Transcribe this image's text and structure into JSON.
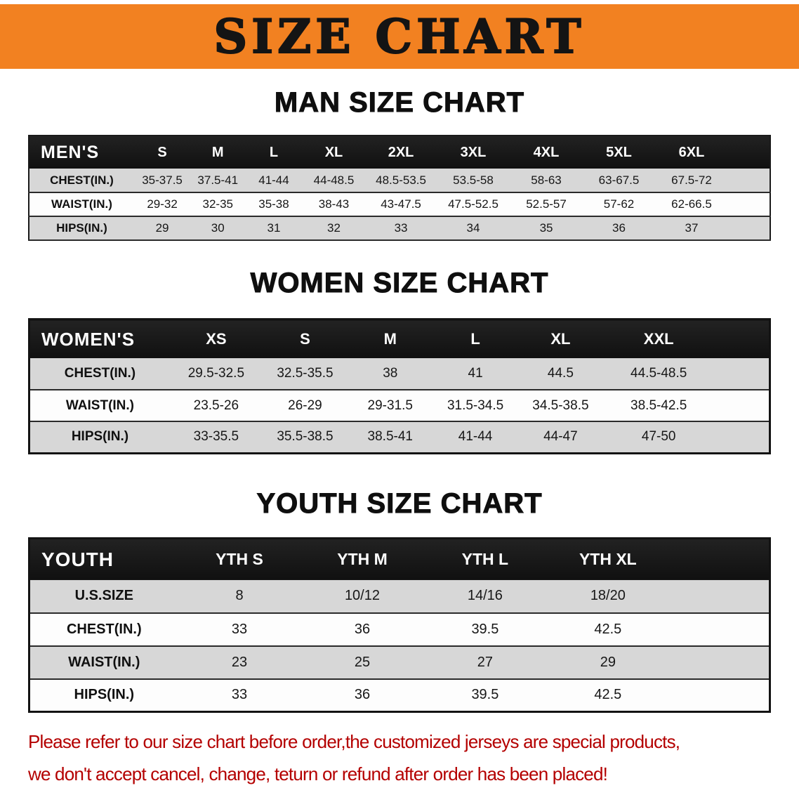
{
  "banner": {
    "title": "SIZE CHART"
  },
  "colors": {
    "banner_bg": "#F28121",
    "table_header_bg": "#171717",
    "table_header_text": "#FFFFFF",
    "shaded_row_bg": "#D7D7D7",
    "note_text": "#B40000"
  },
  "men": {
    "heading": "MAN SIZE CHART",
    "corner": "MEN'S",
    "columns": [
      "S",
      "M",
      "L",
      "XL",
      "2XL",
      "3XL",
      "4XL",
      "5XL",
      "6XL"
    ],
    "rows": [
      {
        "label": "CHEST(IN.)",
        "values": [
          "35-37.5",
          "37.5-41",
          "41-44",
          "44-48.5",
          "48.5-53.5",
          "53.5-58",
          "58-63",
          "63-67.5",
          "67.5-72"
        ]
      },
      {
        "label": "WAIST(IN.)",
        "values": [
          "29-32",
          "32-35",
          "35-38",
          "38-43",
          "43-47.5",
          "47.5-52.5",
          "52.5-57",
          "57-62",
          "62-66.5"
        ]
      },
      {
        "label": "HIPS(IN.)",
        "values": [
          "29",
          "30",
          "31",
          "32",
          "33",
          "34",
          "35",
          "36",
          "37"
        ]
      }
    ]
  },
  "women": {
    "heading": "WOMEN SIZE CHART",
    "corner": "WOMEN'S",
    "columns": [
      "XS",
      "S",
      "M",
      "L",
      "XL",
      "XXL"
    ],
    "rows": [
      {
        "label": "CHEST(IN.)",
        "values": [
          "29.5-32.5",
          "32.5-35.5",
          "38",
          "41",
          "44.5",
          "44.5-48.5"
        ]
      },
      {
        "label": "WAIST(IN.)",
        "values": [
          "23.5-26",
          "26-29",
          "29-31.5",
          "31.5-34.5",
          "34.5-38.5",
          "38.5-42.5"
        ]
      },
      {
        "label": "HIPS(IN.)",
        "values": [
          "33-35.5",
          "35.5-38.5",
          "38.5-41",
          "41-44",
          "44-47",
          "47-50"
        ]
      }
    ]
  },
  "youth": {
    "heading": "YOUTH SIZE CHART",
    "corner": "YOUTH",
    "columns": [
      "YTH S",
      "YTH M",
      "YTH L",
      "YTH XL"
    ],
    "rows": [
      {
        "label": "U.S.SIZE",
        "values": [
          "8",
          "10/12",
          "14/16",
          "18/20"
        ]
      },
      {
        "label": "CHEST(IN.)",
        "values": [
          "33",
          "36",
          "39.5",
          "42.5"
        ]
      },
      {
        "label": "WAIST(IN.)",
        "values": [
          "23",
          "25",
          "27",
          "29"
        ]
      },
      {
        "label": "HIPS(IN.)",
        "values": [
          "33",
          "36",
          "39.5",
          "42.5"
        ]
      }
    ]
  },
  "note": {
    "line1": "Please refer to our size chart before order,the customized jerseys are special products,",
    "line2": "we don't accept cancel, change, teturn or refund after order has been placed!"
  }
}
